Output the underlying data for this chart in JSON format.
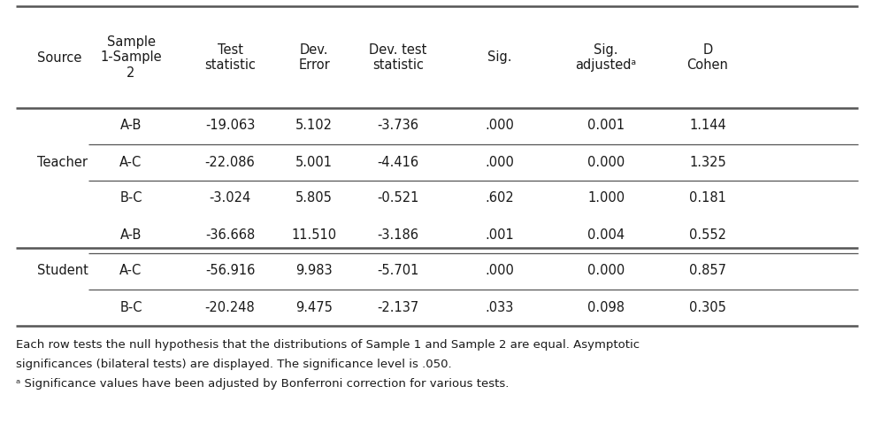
{
  "col_headers": [
    "Source",
    "Sample\n1-Sample\n2",
    "Test\nstatistic",
    "Dev.\nError",
    "Dev. test\nstatistic",
    "Sig.",
    "Sig.\nadjustedᵃ",
    "D\nCohen"
  ],
  "rows": [
    [
      "Teacher",
      "A-B",
      "-19.063",
      "5.102",
      "-3.736",
      ".000",
      "0.001",
      "1.144"
    ],
    [
      "Teacher",
      "A-C",
      "-22.086",
      "5.001",
      "-4.416",
      ".000",
      "0.000",
      "1.325"
    ],
    [
      "Teacher",
      "B-C",
      "-3.024",
      "5.805",
      "-0.521",
      ".602",
      "1.000",
      "0.181"
    ],
    [
      "Student",
      "A-B",
      "-36.668",
      "11.510",
      "-3.186",
      ".001",
      "0.004",
      "0.552"
    ],
    [
      "Student",
      "A-C",
      "-56.916",
      "9.983",
      "-5.701",
      ".000",
      "0.000",
      "0.857"
    ],
    [
      "Student",
      "B-C",
      "-20.248",
      "9.475",
      "-2.137",
      ".033",
      "0.098",
      "0.305"
    ]
  ],
  "footnote1": "Each row tests the null hypothesis that the distributions of Sample 1 and Sample 2 are equal. Asymptotic",
  "footnote2": "significances (bilateral tests) are displayed. The significance level is .050.",
  "footnote3": "ᵃ Significance values have been adjusted by Bonferroni correction for various tests.",
  "background_color": "#ffffff",
  "text_color": "#1a1a1a",
  "line_color": "#555555",
  "font_size": 10.5,
  "header_font_size": 10.5,
  "footnote_font_size": 9.5
}
